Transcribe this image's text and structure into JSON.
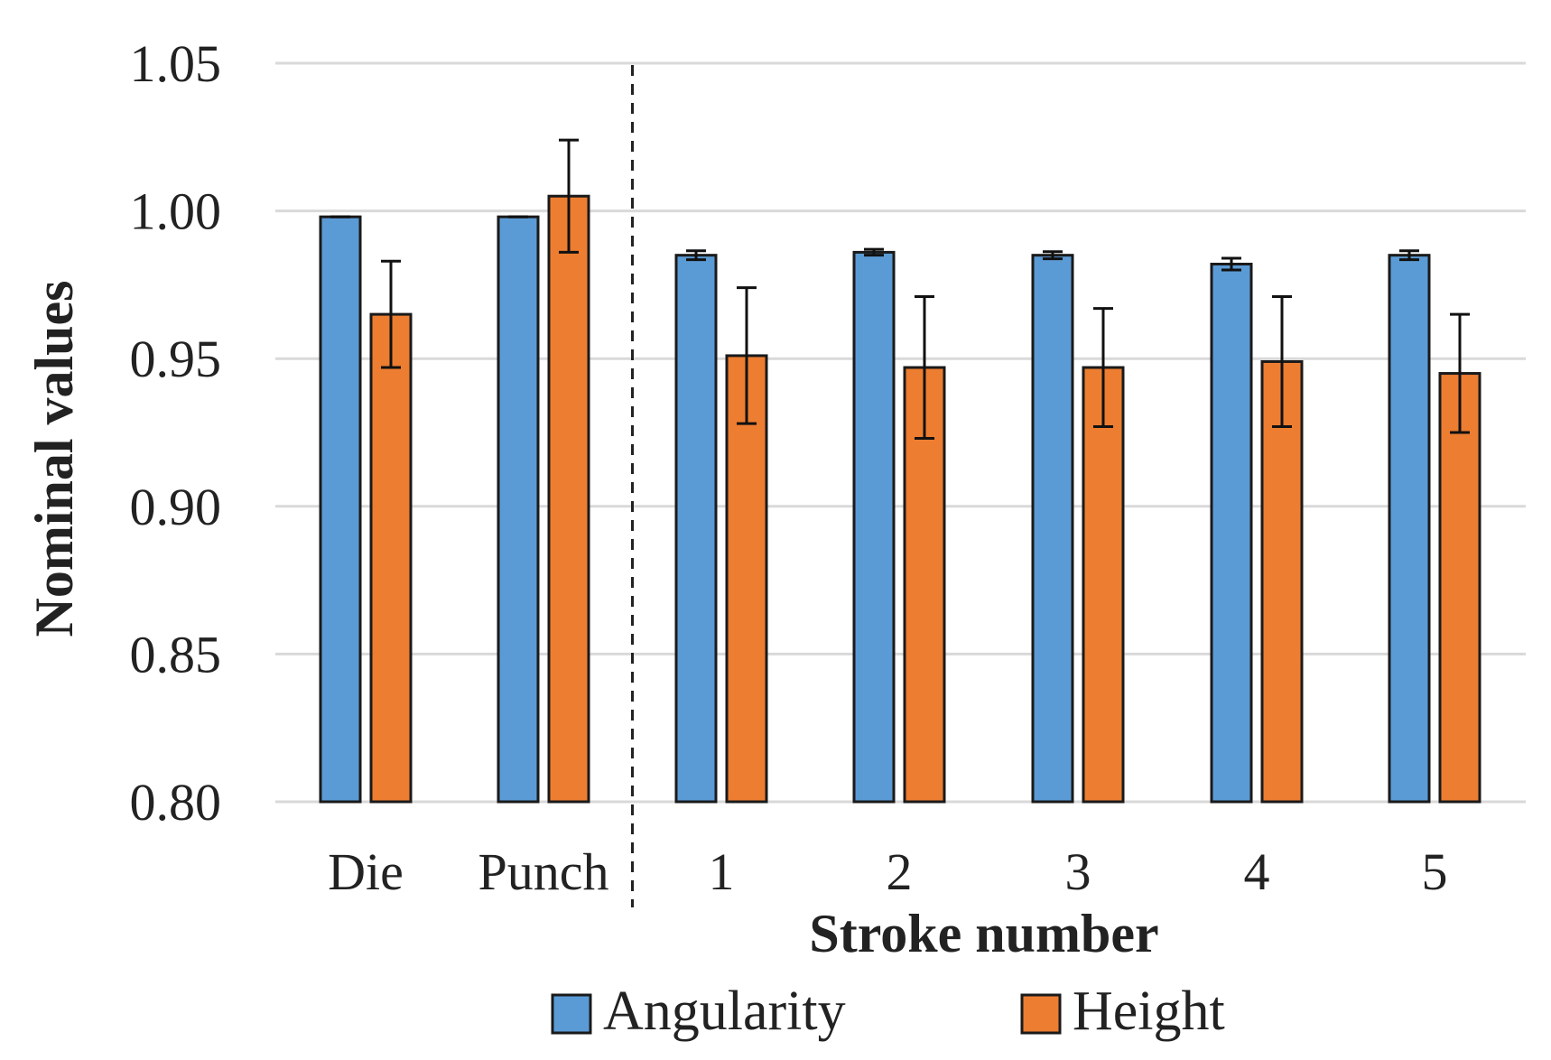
{
  "chart_data": {
    "type": "bar",
    "categories": [
      "Die",
      "Punch",
      "1",
      "2",
      "3",
      "4",
      "5"
    ],
    "series": [
      {
        "name": "Angularity",
        "values": [
          0.998,
          0.998,
          0.985,
          0.986,
          0.985,
          0.982,
          0.985
        ],
        "errors": [
          0.0,
          0.0,
          0.0015,
          0.001,
          0.0012,
          0.002,
          0.0015
        ]
      },
      {
        "name": "Height",
        "values": [
          0.965,
          1.005,
          0.951,
          0.947,
          0.947,
          0.949,
          0.945
        ],
        "errors": [
          0.018,
          0.019,
          0.023,
          0.024,
          0.02,
          0.022,
          0.02
        ]
      }
    ],
    "xlabel": "Stroke number",
    "ylabel": "Nominal values",
    "ylim": [
      0.8,
      1.05
    ],
    "yticks": [
      "0.80",
      "0.85",
      "0.90",
      "0.95",
      "1.00",
      "1.05"
    ],
    "grid": true,
    "legend": "bottom",
    "separator_after_category": "Punch"
  },
  "colors": {
    "Angularity": "#5b9bd5",
    "Height": "#ed7d31",
    "grid": "#d9d9d9",
    "separator": "#222222",
    "bar_stroke": "#1a1a1a"
  }
}
